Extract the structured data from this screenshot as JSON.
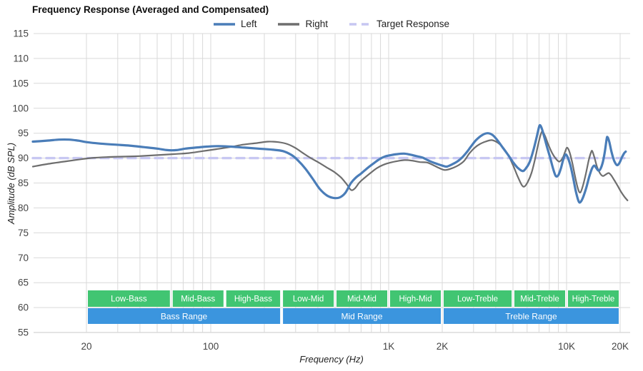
{
  "title": "Frequency Response (Averaged and Compensated)",
  "legend": {
    "items": [
      {
        "label": "Left",
        "color": "#4a7db8",
        "dashed": false
      },
      {
        "label": "Right",
        "color": "#6e6e6e",
        "dashed": false
      },
      {
        "label": "Target Response",
        "color": "#c7c7f2",
        "dashed": true
      }
    ]
  },
  "y_axis": {
    "label": "Amplitude (dB SPL)",
    "min": 55,
    "max": 115,
    "tick_step": 5,
    "ticks": [
      "115",
      "110",
      "105",
      "100",
      "95",
      "90",
      "85",
      "80",
      "75",
      "70",
      "65",
      "60",
      "55"
    ]
  },
  "x_axis": {
    "label": "Frequency (Hz)",
    "min": 10,
    "max": 22600,
    "scale": "log",
    "labeled_ticks": [
      {
        "value": 20,
        "label": "20"
      },
      {
        "value": 100,
        "label": "100"
      },
      {
        "value": 1000,
        "label": "1K"
      },
      {
        "value": 2000,
        "label": "2K"
      },
      {
        "value": 10000,
        "label": "10K"
      },
      {
        "value": 20000,
        "label": "20K"
      }
    ],
    "gridline_values": [
      20,
      30,
      40,
      50,
      60,
      70,
      80,
      90,
      100,
      200,
      300,
      400,
      500,
      600,
      700,
      800,
      900,
      1000,
      2000,
      3000,
      4000,
      5000,
      6000,
      7000,
      8000,
      9000,
      10000,
      20000
    ]
  },
  "colors": {
    "left": "#4a7db8",
    "right": "#6e6e6e",
    "target": "#c7c7f2",
    "grid": "#d9d9d9",
    "axis_text": "#444444",
    "sub_band": "#41c572",
    "range_band": "#3b95de",
    "band_text": "#ffffff"
  },
  "bands": {
    "sub_bands": [
      {
        "label": "Low-Bass",
        "from": 20,
        "to": 60
      },
      {
        "label": "Mid-Bass",
        "from": 60,
        "to": 120
      },
      {
        "label": "High-Bass",
        "from": 120,
        "to": 250
      },
      {
        "label": "Low-Mid",
        "from": 250,
        "to": 500
      },
      {
        "label": "Mid-Mid",
        "from": 500,
        "to": 1000
      },
      {
        "label": "High-Mid",
        "from": 1000,
        "to": 2000
      },
      {
        "label": "Low-Treble",
        "from": 2000,
        "to": 5000
      },
      {
        "label": "Mid-Treble",
        "from": 5000,
        "to": 10000
      },
      {
        "label": "High-Treble",
        "from": 10000,
        "to": 20000
      }
    ],
    "range_bands": [
      {
        "label": "Bass Range",
        "from": 20,
        "to": 250
      },
      {
        "label": "Mid Range",
        "from": 250,
        "to": 2000
      },
      {
        "label": "Treble Range",
        "from": 2000,
        "to": 20000
      }
    ]
  },
  "chart_data": {
    "type": "line",
    "title": "Frequency Response (Averaged and Compensated)",
    "xlabel": "Frequency (Hz)",
    "ylabel": "Amplitude (dB SPL)",
    "x_scale": "log",
    "xlim": [
      10,
      22600
    ],
    "ylim": [
      55,
      115
    ],
    "grid": true,
    "legend_position": "top-center",
    "series": [
      {
        "name": "Left",
        "color": "#4a7db8",
        "style": "solid",
        "width": 3.2,
        "points": [
          [
            10,
            93.3
          ],
          [
            12,
            93.5
          ],
          [
            14,
            93.7
          ],
          [
            16,
            93.7
          ],
          [
            18,
            93.5
          ],
          [
            20,
            93.2
          ],
          [
            24,
            92.9
          ],
          [
            29,
            92.7
          ],
          [
            35,
            92.5
          ],
          [
            42,
            92.2
          ],
          [
            50,
            91.9
          ],
          [
            57,
            91.6
          ],
          [
            64,
            91.6
          ],
          [
            72,
            91.9
          ],
          [
            82,
            92.1
          ],
          [
            95,
            92.3
          ],
          [
            110,
            92.4
          ],
          [
            130,
            92.3
          ],
          [
            155,
            92.1
          ],
          [
            185,
            91.9
          ],
          [
            220,
            91.7
          ],
          [
            255,
            91.4
          ],
          [
            285,
            90.6
          ],
          [
            310,
            89.5
          ],
          [
            340,
            87.9
          ],
          [
            375,
            85.8
          ],
          [
            410,
            83.8
          ],
          [
            450,
            82.5
          ],
          [
            490,
            82.0
          ],
          [
            530,
            82.1
          ],
          [
            570,
            83.0
          ],
          [
            614,
            85.0
          ],
          [
            655,
            86.1
          ],
          [
            700,
            86.9
          ],
          [
            760,
            88.0
          ],
          [
            820,
            88.9
          ],
          [
            880,
            89.7
          ],
          [
            950,
            90.3
          ],
          [
            1030,
            90.6
          ],
          [
            1120,
            90.8
          ],
          [
            1220,
            90.9
          ],
          [
            1320,
            90.7
          ],
          [
            1430,
            90.4
          ],
          [
            1550,
            90.1
          ],
          [
            1700,
            89.4
          ],
          [
            1850,
            88.9
          ],
          [
            2000,
            88.5
          ],
          [
            2120,
            88.3
          ],
          [
            2260,
            88.7
          ],
          [
            2450,
            89.4
          ],
          [
            2600,
            90.2
          ],
          [
            2750,
            91.2
          ],
          [
            2900,
            92.3
          ],
          [
            3100,
            93.6
          ],
          [
            3350,
            94.6
          ],
          [
            3600,
            95.0
          ],
          [
            3850,
            94.6
          ],
          [
            4100,
            93.5
          ],
          [
            4400,
            92.0
          ],
          [
            4700,
            90.6
          ],
          [
            5000,
            89.2
          ],
          [
            5300,
            88.1
          ],
          [
            5650,
            87.4
          ],
          [
            5900,
            87.9
          ],
          [
            6200,
            89.2
          ],
          [
            6500,
            91.5
          ],
          [
            6800,
            94.3
          ],
          [
            7000,
            96.2
          ],
          [
            7100,
            96.6
          ],
          [
            7250,
            96.0
          ],
          [
            7500,
            94.2
          ],
          [
            7800,
            92.0
          ],
          [
            8100,
            90.0
          ],
          [
            8400,
            87.9
          ],
          [
            8700,
            86.4
          ],
          [
            9000,
            86.6
          ],
          [
            9300,
            88.0
          ],
          [
            9600,
            89.8
          ],
          [
            9850,
            90.7
          ],
          [
            10100,
            90.3
          ],
          [
            10500,
            88.6
          ],
          [
            10900,
            86.0
          ],
          [
            11300,
            83.2
          ],
          [
            11700,
            81.3
          ],
          [
            12000,
            81.2
          ],
          [
            12400,
            82.2
          ],
          [
            12900,
            84.0
          ],
          [
            13400,
            86.2
          ],
          [
            13900,
            87.9
          ],
          [
            14300,
            88.5
          ],
          [
            14700,
            88.0
          ],
          [
            15100,
            87.5
          ],
          [
            15500,
            87.8
          ],
          [
            16000,
            89.2
          ],
          [
            16400,
            91.2
          ],
          [
            16800,
            93.8
          ],
          [
            17000,
            94.2
          ],
          [
            17400,
            93.2
          ],
          [
            17900,
            91.2
          ],
          [
            18500,
            89.5
          ],
          [
            19200,
            88.6
          ],
          [
            19800,
            89.0
          ],
          [
            20500,
            90.2
          ],
          [
            21100,
            91.0
          ],
          [
            21500,
            91.3
          ]
        ]
      },
      {
        "name": "Right",
        "color": "#6e6e6e",
        "style": "solid",
        "width": 2.2,
        "points": [
          [
            10,
            88.3
          ],
          [
            12,
            88.8
          ],
          [
            15,
            89.3
          ],
          [
            18,
            89.7
          ],
          [
            21,
            90.0
          ],
          [
            26,
            90.2
          ],
          [
            32,
            90.3
          ],
          [
            40,
            90.4
          ],
          [
            50,
            90.6
          ],
          [
            62,
            90.8
          ],
          [
            75,
            91.0
          ],
          [
            90,
            91.4
          ],
          [
            108,
            91.8
          ],
          [
            128,
            92.2
          ],
          [
            152,
            92.7
          ],
          [
            180,
            93.0
          ],
          [
            210,
            93.3
          ],
          [
            240,
            93.2
          ],
          [
            270,
            92.8
          ],
          [
            300,
            92.0
          ],
          [
            330,
            91.0
          ],
          [
            365,
            90.0
          ],
          [
            405,
            89.1
          ],
          [
            450,
            88.1
          ],
          [
            495,
            87.2
          ],
          [
            540,
            86.1
          ],
          [
            580,
            84.8
          ],
          [
            615,
            83.6
          ],
          [
            645,
            83.9
          ],
          [
            685,
            85.1
          ],
          [
            730,
            86.0
          ],
          [
            790,
            87.0
          ],
          [
            860,
            88.0
          ],
          [
            940,
            88.7
          ],
          [
            1020,
            89.1
          ],
          [
            1120,
            89.4
          ],
          [
            1230,
            89.6
          ],
          [
            1350,
            89.5
          ],
          [
            1500,
            89.2
          ],
          [
            1650,
            89.1
          ],
          [
            1800,
            88.5
          ],
          [
            1950,
            87.9
          ],
          [
            2080,
            87.6
          ],
          [
            2250,
            87.9
          ],
          [
            2450,
            88.5
          ],
          [
            2650,
            89.4
          ],
          [
            2850,
            91.0
          ],
          [
            3050,
            92.1
          ],
          [
            3250,
            92.8
          ],
          [
            3500,
            93.3
          ],
          [
            3800,
            93.6
          ],
          [
            4100,
            93.1
          ],
          [
            4400,
            92.1
          ],
          [
            4700,
            90.6
          ],
          [
            5000,
            88.6
          ],
          [
            5300,
            86.4
          ],
          [
            5600,
            84.6
          ],
          [
            5800,
            84.3
          ],
          [
            6050,
            85.2
          ],
          [
            6350,
            87.0
          ],
          [
            6650,
            89.8
          ],
          [
            6950,
            93.0
          ],
          [
            7200,
            95.0
          ],
          [
            7350,
            95.3
          ],
          [
            7600,
            94.3
          ],
          [
            7900,
            92.7
          ],
          [
            8300,
            91.0
          ],
          [
            8700,
            89.9
          ],
          [
            9100,
            89.3
          ],
          [
            9500,
            90.0
          ],
          [
            9800,
            91.2
          ],
          [
            10050,
            92.1
          ],
          [
            10350,
            91.4
          ],
          [
            10750,
            89.2
          ],
          [
            11150,
            86.4
          ],
          [
            11600,
            83.8
          ],
          [
            11950,
            83.1
          ],
          [
            12350,
            84.4
          ],
          [
            12850,
            86.9
          ],
          [
            13350,
            89.7
          ],
          [
            13750,
            91.2
          ],
          [
            13950,
            91.4
          ],
          [
            14350,
            90.1
          ],
          [
            14850,
            88.2
          ],
          [
            15450,
            86.9
          ],
          [
            16000,
            86.4
          ],
          [
            16600,
            86.7
          ],
          [
            17250,
            87.0
          ],
          [
            17850,
            86.5
          ],
          [
            18600,
            85.5
          ],
          [
            19400,
            84.4
          ],
          [
            20200,
            83.3
          ],
          [
            21100,
            82.3
          ],
          [
            22000,
            81.5
          ]
        ]
      },
      {
        "name": "Target Response",
        "color": "#c7c7f2",
        "style": "dashed",
        "width": 3.4,
        "points": [
          [
            10,
            90
          ],
          [
            22600,
            90
          ]
        ]
      }
    ]
  }
}
